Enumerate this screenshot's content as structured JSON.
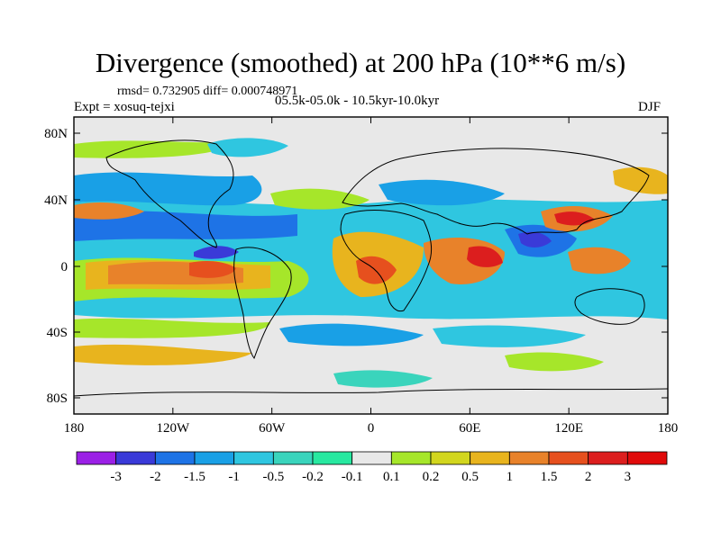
{
  "title": "Divergence (smoothed) at 200 hPa (10**6 m/s)",
  "stats": "rmsd= 0.732905 diff= 0.000748971",
  "experiment": "Expt = xosuq-tejxi",
  "period": "05.5k-05.0k - 10.5kyr-10.0kyr",
  "season": "DJF",
  "axes": {
    "lat_ticks": [
      "80N",
      "40N",
      "0",
      "40S",
      "80S"
    ],
    "lon_ticks": [
      "180",
      "120W",
      "60W",
      "0",
      "60E",
      "120E",
      "180"
    ]
  },
  "colorbar": {
    "labels": [
      "-3",
      "-2",
      "-1.5",
      "-1",
      "-0.5",
      "-0.2",
      "-0.1",
      "0.1",
      "0.2",
      "0.5",
      "1",
      "1.5",
      "2",
      "3"
    ],
    "colors": [
      "#9b20e6",
      "#3a3ad8",
      "#1e73e6",
      "#19a0e6",
      "#2fc6e0",
      "#3ad4bc",
      "#28e8a0",
      "#e8e8e8",
      "#a6e62a",
      "#d2d61e",
      "#e8b41e",
      "#e8822a",
      "#e6501e",
      "#dc1e1e",
      "#e00a0a"
    ]
  }
}
